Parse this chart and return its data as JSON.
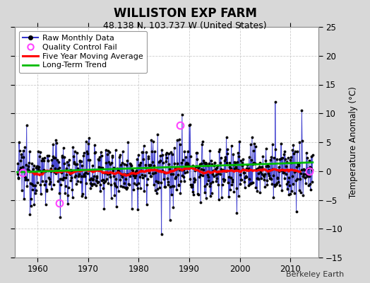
{
  "title": "WILLISTON EXP FARM",
  "subtitle": "48.138 N, 103.737 W (United States)",
  "ylabel": "Temperature Anomaly (°C)",
  "watermark": "Berkeley Earth",
  "xlim": [
    1955.5,
    2015.5
  ],
  "ylim": [
    -15,
    25
  ],
  "yticks": [
    -15,
    -10,
    -5,
    0,
    5,
    10,
    15,
    20,
    25
  ],
  "xticks": [
    1960,
    1970,
    1980,
    1990,
    2000,
    2010
  ],
  "bg_color": "#d8d8d8",
  "plot_bg_color": "#ffffff",
  "seed": 12345,
  "raw_color": "#3333cc",
  "dot_color": "#000000",
  "ma_color": "#ff0000",
  "trend_color": "#00bb00",
  "qc_color": "#ff44ff",
  "title_fontsize": 12,
  "subtitle_fontsize": 9,
  "legend_fontsize": 8,
  "tick_fontsize": 8.5,
  "ylabel_fontsize": 8.5,
  "watermark_fontsize": 8
}
